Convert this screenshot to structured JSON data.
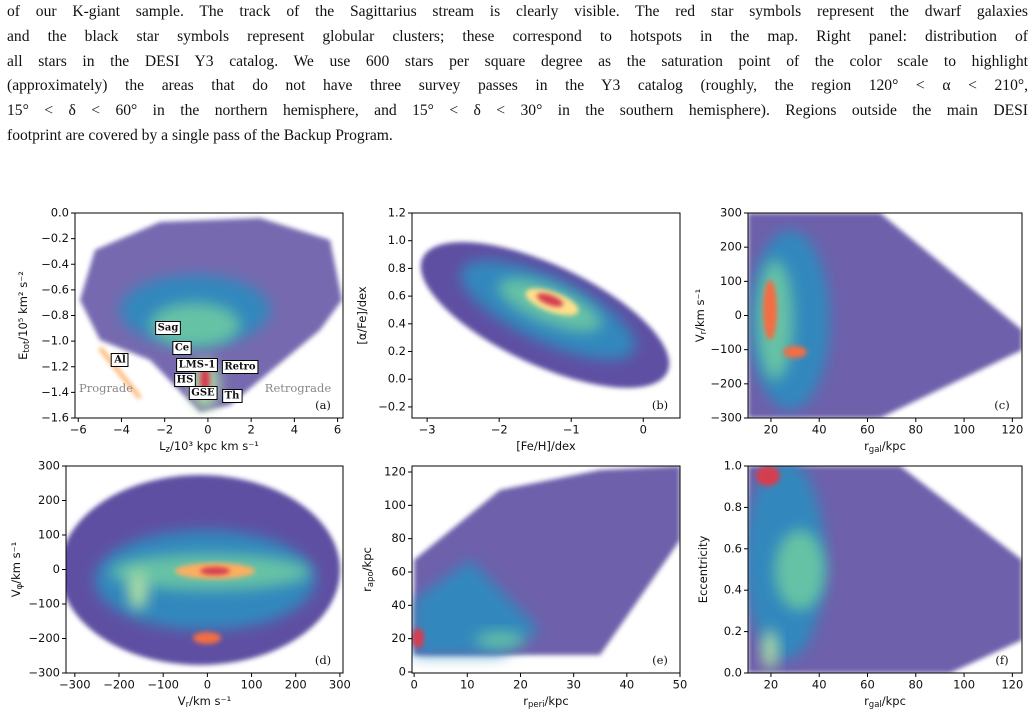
{
  "caption": {
    "lines": [
      "of our K-giant sample. The track of the Sagittarius stream is clearly visible. The red star symbols represent the dwarf galaxies",
      "and the black star symbols represent globular clusters; these correspond to hotspots in the map. Right panel: distribution of",
      "all stars in the DESI Y3 catalog. We use 600 stars per square degree as the saturation point of the color scale to highlight",
      "(approximately) the areas that do not have three survey passes in the Y3 catalog (roughly, the region 120° < α < 210°,",
      "15° < δ < 60° in the northern hemisphere, and 15° < δ < 30° in the southern hemisphere). Regions outside the main DESI",
      "footprint are covered by a single pass of the Backup Program."
    ]
  },
  "figure": {
    "panels": [
      {
        "label": "(a)",
        "xlabel": [
          "L",
          "z",
          "/10³ kpc km s⁻¹"
        ],
        "ylabel": [
          "E",
          "tot",
          "/10⁵ km² s⁻²"
        ],
        "xlim": [
          -6.15,
          6.25
        ],
        "ylim": [
          -1.6,
          0
        ],
        "xticks": [
          {
            "value": -6,
            "label": "−6"
          },
          {
            "value": -4,
            "label": "−4"
          },
          {
            "value": -2,
            "label": "−2"
          },
          0,
          2,
          4,
          6
        ],
        "yticks": [
          {
            "value": 0,
            "label": "0.0"
          },
          {
            "value": -0.2,
            "label": "−0.2"
          },
          {
            "value": -0.4,
            "label": "−0.4"
          },
          {
            "value": -0.6,
            "label": "−0.6"
          },
          {
            "value": -0.8,
            "label": "−0.8"
          },
          {
            "value": -1.0,
            "label": "−1.0"
          },
          {
            "value": -1.2,
            "label": "−1.2"
          },
          {
            "value": -1.4,
            "label": "−1.4"
          },
          {
            "value": -1.6,
            "label": "−1.6"
          }
        ],
        "boxed_labels": [
          "Sag",
          "Ce",
          "Al",
          "LMS-1",
          "Retro",
          "HS",
          "GSE",
          "Th"
        ],
        "side_labels": [
          "Prograde",
          "Retrograde"
        ]
      },
      {
        "label": "(b)",
        "xlabel": [
          "[Fe/H]/dex"
        ],
        "ylabel": [
          "[α/Fe]/dex"
        ],
        "xlim": [
          -3.21,
          0.51
        ],
        "ylim": [
          -0.28,
          1.2
        ],
        "xticks": [
          {
            "value": -3,
            "label": "−3"
          },
          {
            "value": -2,
            "label": "−2"
          },
          {
            "value": -1,
            "label": "−1"
          },
          0
        ],
        "yticks": [
          {
            "value": 1.2,
            "label": "1.2"
          },
          {
            "value": 1.0,
            "label": "1.0"
          },
          {
            "value": 0.8,
            "label": "0.8"
          },
          {
            "value": 0.6,
            "label": "0.6"
          },
          {
            "value": 0.4,
            "label": "0.4"
          },
          {
            "value": 0.2,
            "label": "0.2"
          },
          {
            "value": 0,
            "label": "0.0"
          },
          {
            "value": -0.2,
            "label": "−0.2"
          }
        ]
      },
      {
        "label": "(c)",
        "xlabel": [
          "r",
          "gal",
          "/kpc"
        ],
        "ylabel": [
          "V",
          "r",
          "/km s⁻¹"
        ],
        "xlim": [
          10.5,
          124
        ],
        "ylim": [
          -300,
          300
        ],
        "xticks": [
          20,
          40,
          60,
          80,
          100,
          120
        ],
        "yticks": [
          300,
          200,
          100,
          0,
          {
            "value": -100,
            "label": "−100"
          },
          {
            "value": -200,
            "label": "−200"
          },
          {
            "value": -300,
            "label": "−300"
          }
        ]
      },
      {
        "label": "(d)",
        "xlabel": [
          "V",
          "r",
          "/km s⁻¹"
        ],
        "ylabel": [
          "V",
          "φ",
          "/km s⁻¹"
        ],
        "xlim": [
          -320,
          307
        ],
        "ylim": [
          -300,
          300
        ],
        "xticks": [
          {
            "value": -300,
            "label": "−300"
          },
          {
            "value": -200,
            "label": "−200"
          },
          {
            "value": -100,
            "label": "−100"
          },
          0,
          100,
          200,
          300
        ],
        "yticks": [
          300,
          200,
          100,
          0,
          {
            "value": -100,
            "label": "−100"
          },
          {
            "value": -200,
            "label": "−200"
          },
          {
            "value": -300,
            "label": "−300"
          }
        ]
      },
      {
        "label": "(e)",
        "xlabel": [
          "r",
          "peri",
          "/kpc"
        ],
        "ylabel": [
          "r",
          "apo",
          "/kpc"
        ],
        "xlim": [
          -0.4,
          50
        ],
        "ylim": [
          -0.6,
          123.6
        ],
        "xticks": [
          0,
          10,
          20,
          30,
          40,
          50
        ],
        "yticks": [
          0,
          20,
          40,
          60,
          80,
          100,
          120
        ]
      },
      {
        "label": "(f)",
        "xlabel": [
          "r",
          "gal",
          "/kpc"
        ],
        "ylabel": [
          "Eccentricity"
        ],
        "xlim": [
          10.5,
          124
        ],
        "ylim": [
          0,
          1
        ],
        "xticks": [
          20,
          40,
          60,
          80,
          100,
          120
        ],
        "yticks": [
          {
            "value": 0,
            "label": "0.0"
          },
          {
            "value": 0.2,
            "label": "0.2"
          },
          {
            "value": 0.4,
            "label": "0.4"
          },
          {
            "value": 0.6,
            "label": "0.6"
          },
          {
            "value": 0.8,
            "label": "0.8"
          },
          {
            "value": 1,
            "label": "1.0"
          }
        ]
      }
    ]
  }
}
